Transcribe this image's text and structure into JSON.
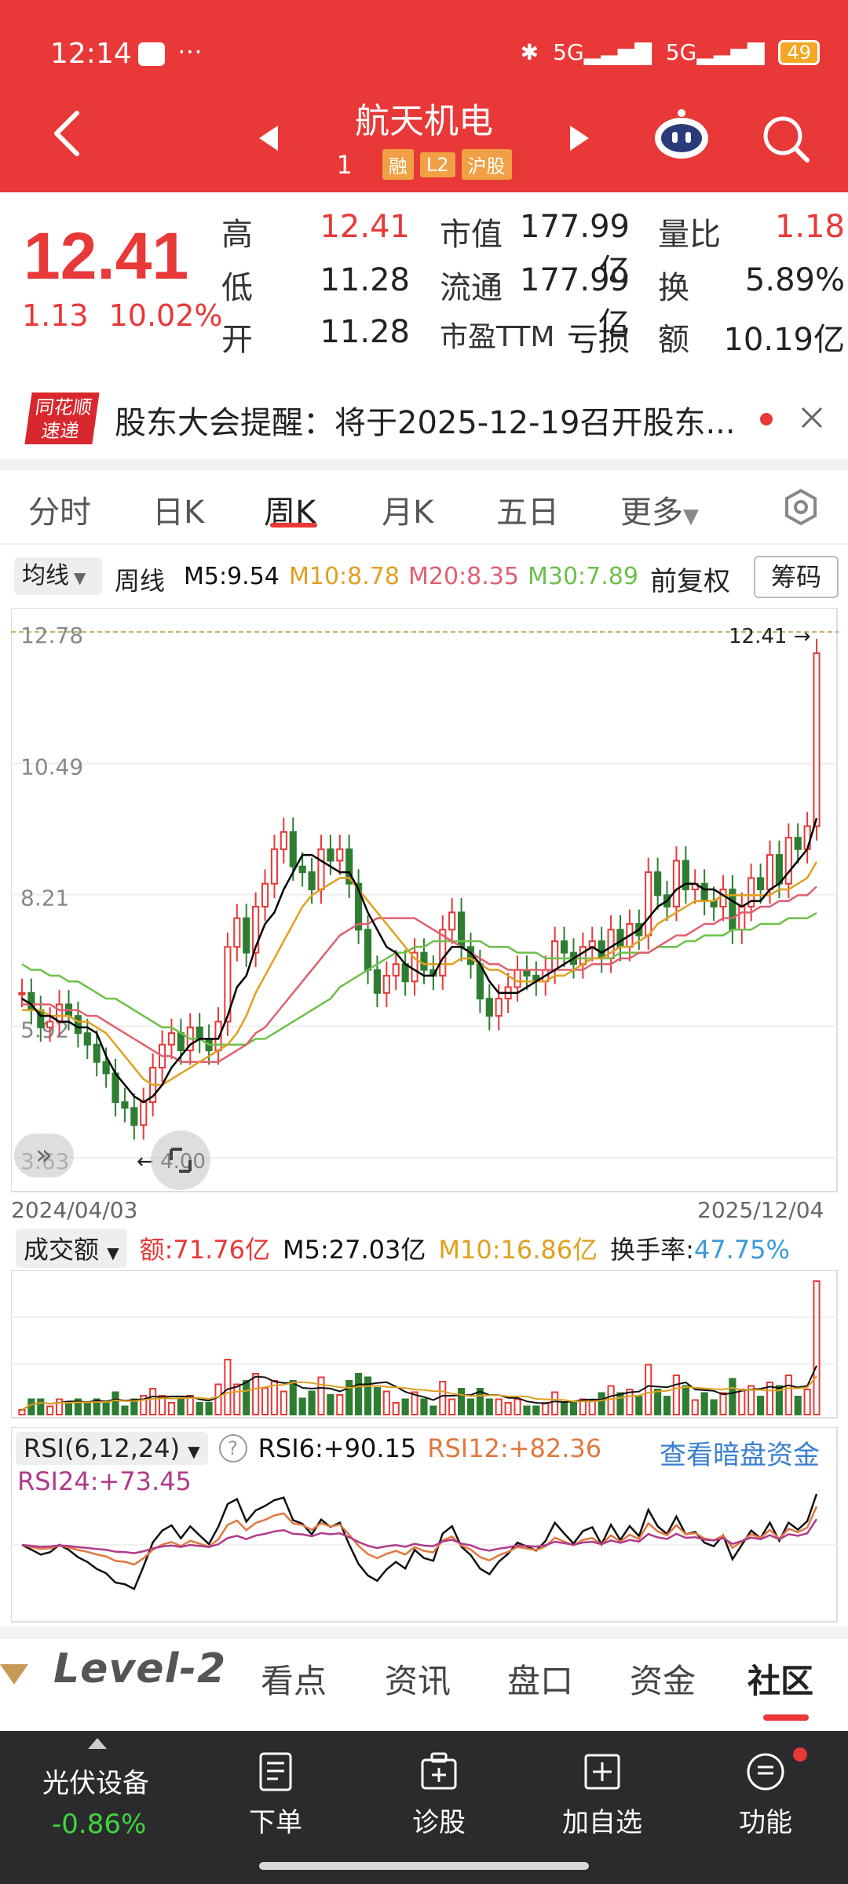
{
  "status_bar": {
    "time": "12:14",
    "battery": "49",
    "net1": "5G",
    "net2": "5G"
  },
  "header": {
    "title": "航天机电",
    "code": "1",
    "tags": [
      "融",
      "L2",
      "沪股"
    ]
  },
  "quote": {
    "price": "12.41",
    "change": "1.13",
    "change_pct": "10.02%",
    "fields": [
      {
        "label": "高",
        "value": "12.41",
        "red": true
      },
      {
        "label": "低",
        "value": "11.28",
        "red": false
      },
      {
        "label": "开",
        "value": "11.28",
        "red": false
      },
      {
        "label": "市值",
        "value": "177.99亿"
      },
      {
        "label": "流通",
        "value": "177.99亿"
      },
      {
        "label": "市盈TTM",
        "value": "亏损"
      },
      {
        "label": "量比",
        "value": "1.18",
        "red": true
      },
      {
        "label": "换",
        "value": "5.89%"
      },
      {
        "label": "额",
        "value": "10.19亿"
      }
    ]
  },
  "notice": {
    "logo_top": "同花顺",
    "logo_bottom": "速递",
    "text": "股东大会提醒：将于2025-12-19召开股东..."
  },
  "tabs": [
    "分时",
    "日K",
    "周K",
    "月K",
    "五日",
    "更多"
  ],
  "ma_bar": {
    "select": "均线",
    "period": "周线",
    "m5": "M5:9.54",
    "m10": "M10:8.78",
    "m20": "M20:8.35",
    "m30": "M30:7.89",
    "adjust": "前复权",
    "chip_button": "筹码"
  },
  "chart_data": {
    "type": "candlestick",
    "period": "weekly",
    "y_ticks": [
      "12.78",
      "10.49",
      "8.21",
      "5.92",
      "3.63"
    ],
    "ylim": [
      3.63,
      12.78
    ],
    "max_label": "12.41",
    "min_label": "4.00",
    "start_date": "2024/04/03",
    "end_date": "2025/12/04",
    "series_colors": {
      "up": "#e93838",
      "down": "#2e7d32",
      "m5": "#000000",
      "m10": "#e0a020",
      "m20": "#e06070",
      "m30": "#6cc04a"
    },
    "closes": [
      6.5,
      6.2,
      5.9,
      6.0,
      6.3,
      6.1,
      5.8,
      5.6,
      5.3,
      5.1,
      4.6,
      4.5,
      4.2,
      4.6,
      5.2,
      5.6,
      5.8,
      5.5,
      5.9,
      5.7,
      5.5,
      6.0,
      7.3,
      7.8,
      7.2,
      8.0,
      8.4,
      9.0,
      9.3,
      8.7,
      8.6,
      8.3,
      9.0,
      8.8,
      9.0,
      8.4,
      7.6,
      6.9,
      6.5,
      6.8,
      7.0,
      6.7,
      7.2,
      6.9,
      6.8,
      7.6,
      7.9,
      7.3,
      7.0,
      6.4,
      6.1,
      6.4,
      6.6,
      6.9,
      6.8,
      6.7,
      6.9,
      7.4,
      7.2,
      7.0,
      7.3,
      7.4,
      7.1,
      7.6,
      7.3,
      7.7,
      7.5,
      8.6,
      8.2,
      8.0,
      8.8,
      8.3,
      8.4,
      8.1,
      8.0,
      8.3,
      7.6,
      8.0,
      8.5,
      8.3,
      8.9,
      8.4,
      9.2,
      9.0,
      9.4,
      12.41
    ],
    "m5": [
      6.4,
      6.3,
      6.1,
      6.1,
      6.0,
      6.0,
      5.9,
      5.9,
      5.8,
      5.4,
      5.1,
      4.9,
      4.7,
      4.6,
      4.7,
      4.9,
      5.2,
      5.4,
      5.6,
      5.7,
      5.7,
      5.7,
      6.1,
      6.6,
      6.8,
      7.3,
      7.7,
      7.9,
      8.3,
      8.6,
      8.9,
      8.9,
      8.8,
      8.7,
      8.6,
      8.6,
      8.3,
      7.9,
      7.6,
      7.3,
      7.2,
      7.0,
      6.9,
      6.8,
      6.8,
      7.1,
      7.3,
      7.3,
      7.2,
      7.0,
      6.7,
      6.5,
      6.5,
      6.5,
      6.6,
      6.7,
      6.8,
      6.9,
      7.0,
      7.1,
      7.2,
      7.3,
      7.2,
      7.3,
      7.4,
      7.5,
      7.6,
      7.8,
      8.0,
      8.1,
      8.3,
      8.4,
      8.4,
      8.3,
      8.3,
      8.2,
      8.1,
      8.0,
      8.1,
      8.1,
      8.3,
      8.4,
      8.6,
      8.8,
      9.0,
      9.54
    ],
    "m10": [
      6.2,
      6.2,
      6.2,
      6.1,
      6.1,
      6.1,
      6.0,
      6.0,
      5.9,
      5.8,
      5.6,
      5.4,
      5.2,
      5.0,
      4.9,
      4.9,
      5.0,
      5.1,
      5.2,
      5.3,
      5.4,
      5.5,
      5.6,
      5.8,
      6.1,
      6.5,
      6.8,
      7.1,
      7.4,
      7.7,
      8.0,
      8.2,
      8.3,
      8.4,
      8.5,
      8.5,
      8.3,
      8.1,
      7.9,
      7.7,
      7.5,
      7.3,
      7.1,
      7.0,
      7.0,
      7.0,
      7.0,
      7.1,
      7.1,
      7.0,
      6.9,
      6.9,
      6.8,
      6.7,
      6.7,
      6.7,
      6.7,
      6.8,
      6.8,
      6.9,
      7.0,
      7.1,
      7.1,
      7.2,
      7.3,
      7.3,
      7.4,
      7.5,
      7.7,
      7.8,
      7.9,
      8.0,
      8.1,
      8.1,
      8.1,
      8.2,
      8.2,
      8.2,
      8.2,
      8.2,
      8.2,
      8.3,
      8.3,
      8.4,
      8.5,
      8.78
    ],
    "m20": [
      6.3,
      6.3,
      6.3,
      6.3,
      6.2,
      6.2,
      6.2,
      6.1,
      6.1,
      6.0,
      5.9,
      5.8,
      5.7,
      5.6,
      5.5,
      5.4,
      5.4,
      5.3,
      5.3,
      5.3,
      5.3,
      5.3,
      5.4,
      5.5,
      5.6,
      5.8,
      5.9,
      6.1,
      6.3,
      6.5,
      6.7,
      6.9,
      7.1,
      7.3,
      7.5,
      7.6,
      7.7,
      7.7,
      7.8,
      7.8,
      7.8,
      7.8,
      7.8,
      7.7,
      7.6,
      7.5,
      7.4,
      7.3,
      7.2,
      7.1,
      7.0,
      7.0,
      6.9,
      6.9,
      6.9,
      6.9,
      6.9,
      6.9,
      6.9,
      6.9,
      6.9,
      7.0,
      7.0,
      7.0,
      7.1,
      7.1,
      7.2,
      7.2,
      7.3,
      7.4,
      7.5,
      7.5,
      7.6,
      7.7,
      7.7,
      7.8,
      7.8,
      7.9,
      7.9,
      8.0,
      8.0,
      8.1,
      8.1,
      8.2,
      8.2,
      8.35
    ],
    "m30": [
      7.0,
      6.9,
      6.9,
      6.8,
      6.8,
      6.7,
      6.7,
      6.6,
      6.5,
      6.4,
      6.4,
      6.3,
      6.2,
      6.1,
      6.0,
      5.9,
      5.9,
      5.8,
      5.7,
      5.7,
      5.6,
      5.6,
      5.6,
      5.6,
      5.6,
      5.7,
      5.7,
      5.8,
      5.9,
      6.0,
      6.1,
      6.2,
      6.3,
      6.4,
      6.6,
      6.7,
      6.8,
      6.9,
      7.0,
      7.1,
      7.2,
      7.2,
      7.3,
      7.3,
      7.4,
      7.4,
      7.4,
      7.4,
      7.4,
      7.4,
      7.3,
      7.3,
      7.3,
      7.2,
      7.2,
      7.2,
      7.1,
      7.1,
      7.1,
      7.1,
      7.1,
      7.1,
      7.1,
      7.1,
      7.2,
      7.2,
      7.2,
      7.2,
      7.3,
      7.3,
      7.3,
      7.4,
      7.4,
      7.5,
      7.5,
      7.5,
      7.6,
      7.6,
      7.6,
      7.7,
      7.7,
      7.7,
      7.8,
      7.8,
      7.8,
      7.89
    ],
    "volume": {
      "label_select": "成交额",
      "amount": "额:71.76亿",
      "m5": "M5:27.03亿",
      "m10": "M10:16.86亿",
      "turnover_label": "换手率:",
      "turnover": "47.75%"
    },
    "rsi": {
      "label_select": "RSI(6,12,24)",
      "rsi6": "RSI6:+90.15",
      "rsi12": "RSI12:+82.36",
      "rsi24": "RSI24:+73.45",
      "link": "查看暗盘资金",
      "help": "?"
    }
  },
  "bottom_tabs": {
    "level2": "Level-2",
    "items": [
      "看点",
      "资讯",
      "盘口",
      "资金",
      "社区"
    ]
  },
  "navbar": {
    "sector": "光伏设备",
    "sector_change": "-0.86%",
    "items": [
      "下单",
      "诊股",
      "加自选",
      "功能"
    ]
  }
}
